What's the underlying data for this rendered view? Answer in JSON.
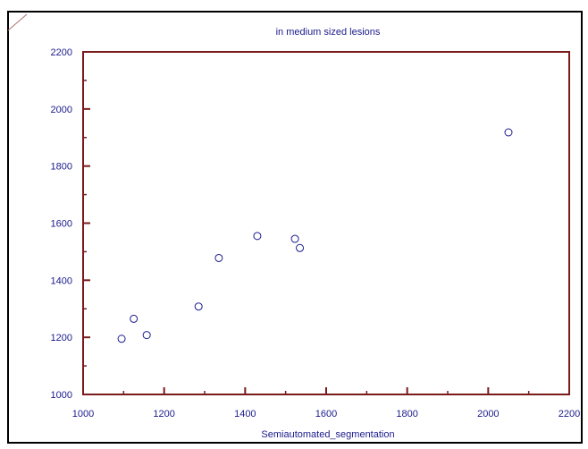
{
  "chart_data": {
    "type": "scatter",
    "title": "in medium sized lesions",
    "xlabel": "Semiautomated_segmentation",
    "ylabel": "",
    "xlim": [
      1000,
      2200
    ],
    "ylim": [
      1000,
      2200
    ],
    "x_ticks": [
      1000,
      1200,
      1400,
      1600,
      1800,
      2000,
      2200
    ],
    "y_ticks": [
      1000,
      1200,
      1400,
      1600,
      1800,
      2000,
      2200
    ],
    "grid": false,
    "colors": {
      "axis": "#7a1a1a",
      "text": "#1a1a8c",
      "marker": "#1a1a8c"
    },
    "series": [
      {
        "x": [
          1095,
          1125,
          1157,
          1285,
          1335,
          1430,
          1523,
          1535,
          2050
        ],
        "y": [
          1195,
          1265,
          1208,
          1308,
          1478,
          1555,
          1545,
          1513,
          1918
        ]
      }
    ]
  }
}
